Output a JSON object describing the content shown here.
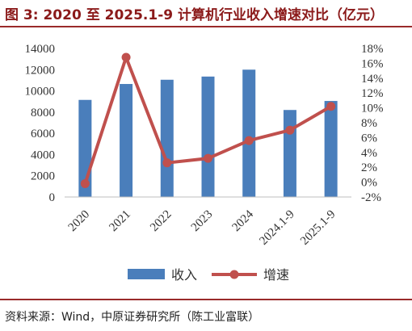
{
  "title": "图 3: 2020 至 2025.1-9 计算机行业收入增速对比（亿元）",
  "source": "资料来源：Wind，中原证券研究所（陈工业富联）",
  "colors": {
    "bar": "#4a7ebb",
    "line": "#c0504d",
    "accent": "#8b1a1a"
  },
  "chart_data": {
    "type": "bar",
    "categories": [
      "2020",
      "2021",
      "2022",
      "2023",
      "2024",
      "2024.1-9",
      "2025.1-9"
    ],
    "series": [
      {
        "name": "收入",
        "type": "bar",
        "axis": "left",
        "values": [
          9150,
          10650,
          11050,
          11350,
          12000,
          8200,
          9050
        ]
      },
      {
        "name": "增速",
        "type": "line",
        "axis": "right",
        "values": [
          -0.2,
          16.8,
          2.6,
          3.2,
          5.6,
          7.0,
          10.2
        ]
      }
    ],
    "y_left": {
      "min": 0,
      "max": 14000,
      "step": 2000,
      "ticks": [
        "0",
        "2000",
        "4000",
        "6000",
        "8000",
        "10000",
        "12000",
        "14000"
      ]
    },
    "y_right": {
      "min": -2,
      "max": 18,
      "step": 2,
      "ticks": [
        "-2%",
        "0%",
        "2%",
        "4%",
        "6%",
        "8%",
        "10%",
        "12%",
        "14%",
        "16%",
        "18%"
      ]
    },
    "legend": {
      "placement": "bottom",
      "items": [
        "收入",
        "增速"
      ]
    },
    "grid": false
  }
}
